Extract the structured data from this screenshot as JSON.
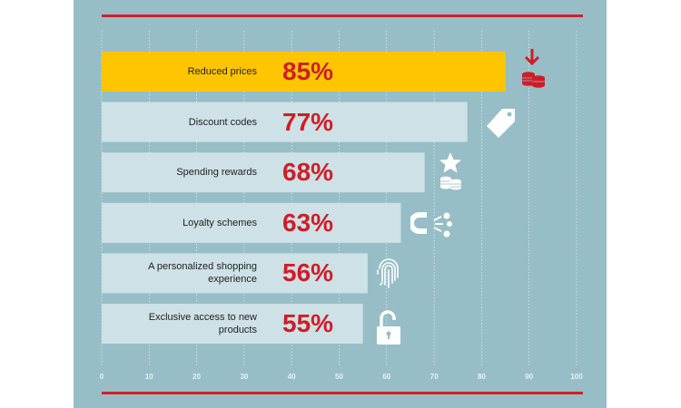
{
  "chart_data": {
    "type": "bar",
    "orientation": "horizontal",
    "categories": [
      "Reduced prices",
      "Discount codes",
      "Spending rewards",
      "Loyalty schemes",
      "A personalized shopping experience",
      "Exclusive access to new products"
    ],
    "values": [
      85,
      77,
      68,
      63,
      56,
      55
    ],
    "value_labels": [
      "85%",
      "77%",
      "68%",
      "63%",
      "56%",
      "55%"
    ],
    "x_ticks": [
      "0",
      "10",
      "20",
      "30",
      "40",
      "50",
      "60",
      "70",
      "80",
      "90",
      "100"
    ],
    "xlim": [
      0,
      100
    ],
    "grid": true,
    "highlight_index": 0,
    "colors": {
      "background": "#97bec7",
      "bar": "#cde1e6",
      "bar_highlight": "#ffc500",
      "value_text": "#cf1d26",
      "rule": "#d0202a",
      "icon": "#ffffff",
      "icon_highlight": "#cf1d26"
    },
    "icons": [
      "down-arrow-coins-icon",
      "price-tag-icon",
      "star-coins-icon",
      "magnet-icon",
      "fingerprint-icon",
      "open-padlock-icon"
    ]
  }
}
